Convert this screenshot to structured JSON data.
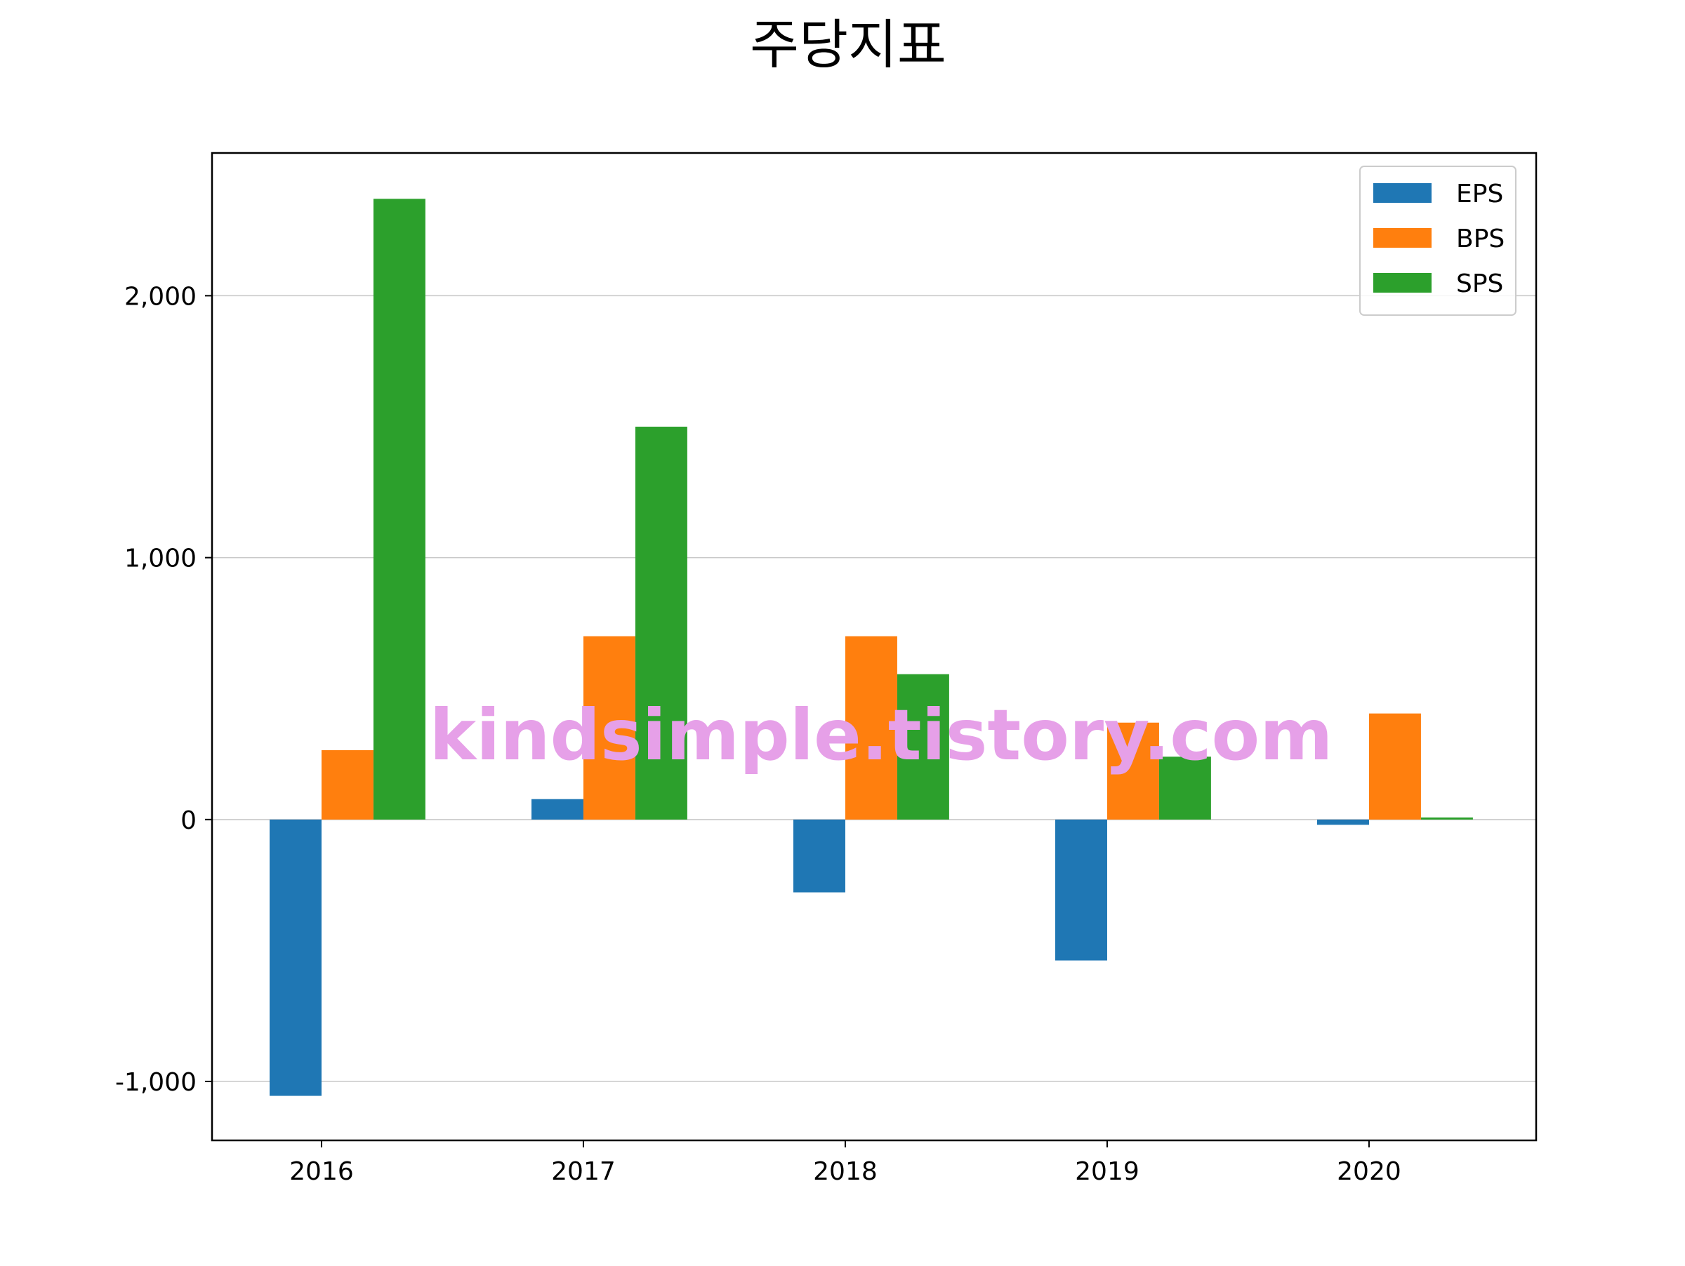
{
  "chart_data": {
    "type": "bar",
    "title": "주당지표",
    "xlabel": "",
    "ylabel": "",
    "categories": [
      "2016",
      "2017",
      "2018",
      "2019",
      "2020"
    ],
    "series": [
      {
        "name": "EPS",
        "color": "#1f77b4",
        "values": [
          -1055,
          78,
          -278,
          -538,
          -20
        ]
      },
      {
        "name": "BPS",
        "color": "#ff7f0e",
        "values": [
          265,
          700,
          700,
          370,
          405
        ]
      },
      {
        "name": "SPS",
        "color": "#2ca02c",
        "values": [
          2370,
          1500,
          555,
          240,
          8
        ]
      }
    ],
    "ylim": [
      -1225,
      2545
    ],
    "yticks": [
      -1000,
      0,
      1000,
      2000
    ],
    "ytick_labels": [
      "-1,000",
      "0",
      "1,000",
      "2,000"
    ],
    "grid": "y",
    "legend_position": "top-right",
    "watermark": "kindsimple.tistory.com"
  }
}
